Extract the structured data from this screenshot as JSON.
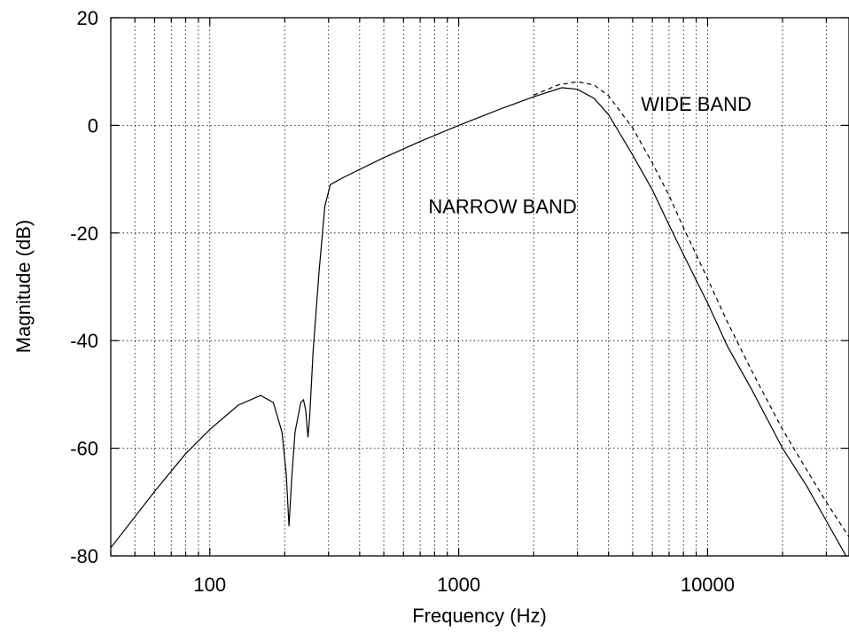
{
  "chart_data": {
    "type": "line",
    "title": "",
    "xlabel": "Frequency (Hz)",
    "ylabel": "Magnitude (dB)",
    "x_scale": "log",
    "xlim": [
      40,
      37000
    ],
    "ylim": [
      -80,
      20
    ],
    "grid": true,
    "x_ticks": [
      {
        "value": 100,
        "label": "100"
      },
      {
        "value": 1000,
        "label": "1000"
      },
      {
        "value": 10000,
        "label": "10000"
      }
    ],
    "y_ticks": [
      {
        "value": 20,
        "label": "20"
      },
      {
        "value": 0,
        "label": "0"
      },
      {
        "value": -20,
        "label": "-20"
      },
      {
        "value": -40,
        "label": "-40"
      },
      {
        "value": -60,
        "label": "-60"
      },
      {
        "value": -80,
        "label": "-80"
      }
    ],
    "annotations": [
      {
        "text": "WIDE BAND",
        "x": 9000,
        "y": 4
      },
      {
        "text": "NARROW BAND",
        "x": 1500,
        "y": -15
      }
    ],
    "series": [
      {
        "id": "narrow",
        "style": "solid",
        "points": [
          [
            40,
            -78.5
          ],
          [
            60,
            -68
          ],
          [
            80,
            -61
          ],
          [
            100,
            -56.5
          ],
          [
            130,
            -52
          ],
          [
            160,
            -50.2
          ],
          [
            180,
            -51.5
          ],
          [
            195,
            -57
          ],
          [
            203,
            -65
          ],
          [
            208,
            -74.5
          ],
          [
            213,
            -66
          ],
          [
            220,
            -57
          ],
          [
            232,
            -51.5
          ],
          [
            238,
            -51
          ],
          [
            243,
            -53
          ],
          [
            248,
            -58
          ],
          [
            252,
            -54
          ],
          [
            260,
            -42
          ],
          [
            275,
            -27
          ],
          [
            290,
            -15
          ],
          [
            305,
            -11
          ],
          [
            350,
            -9.5
          ],
          [
            500,
            -6
          ],
          [
            700,
            -3
          ],
          [
            1000,
            0
          ],
          [
            1500,
            3.2
          ],
          [
            2000,
            5.3
          ],
          [
            2600,
            7
          ],
          [
            3000,
            6.7
          ],
          [
            3500,
            5
          ],
          [
            4000,
            2
          ],
          [
            5000,
            -5.5
          ],
          [
            6000,
            -12
          ],
          [
            7000,
            -18.5
          ],
          [
            8000,
            -24
          ],
          [
            10000,
            -33
          ],
          [
            12000,
            -41
          ],
          [
            15000,
            -49
          ],
          [
            20000,
            -60
          ],
          [
            25000,
            -67
          ],
          [
            30000,
            -73.5
          ],
          [
            35000,
            -79
          ],
          [
            37000,
            -81
          ]
        ]
      },
      {
        "id": "wide",
        "style": "dashed",
        "points": [
          [
            2000,
            5.6
          ],
          [
            2500,
            7.5
          ],
          [
            3000,
            8.1
          ],
          [
            3500,
            7.5
          ],
          [
            4000,
            5.5
          ],
          [
            5000,
            -0.5
          ],
          [
            6000,
            -7
          ],
          [
            7000,
            -13
          ],
          [
            8000,
            -19
          ],
          [
            10000,
            -28.5
          ],
          [
            12000,
            -36.5
          ],
          [
            15000,
            -45.5
          ],
          [
            20000,
            -56.5
          ],
          [
            25000,
            -64
          ],
          [
            30000,
            -70
          ],
          [
            37000,
            -76.5
          ]
        ]
      }
    ]
  }
}
